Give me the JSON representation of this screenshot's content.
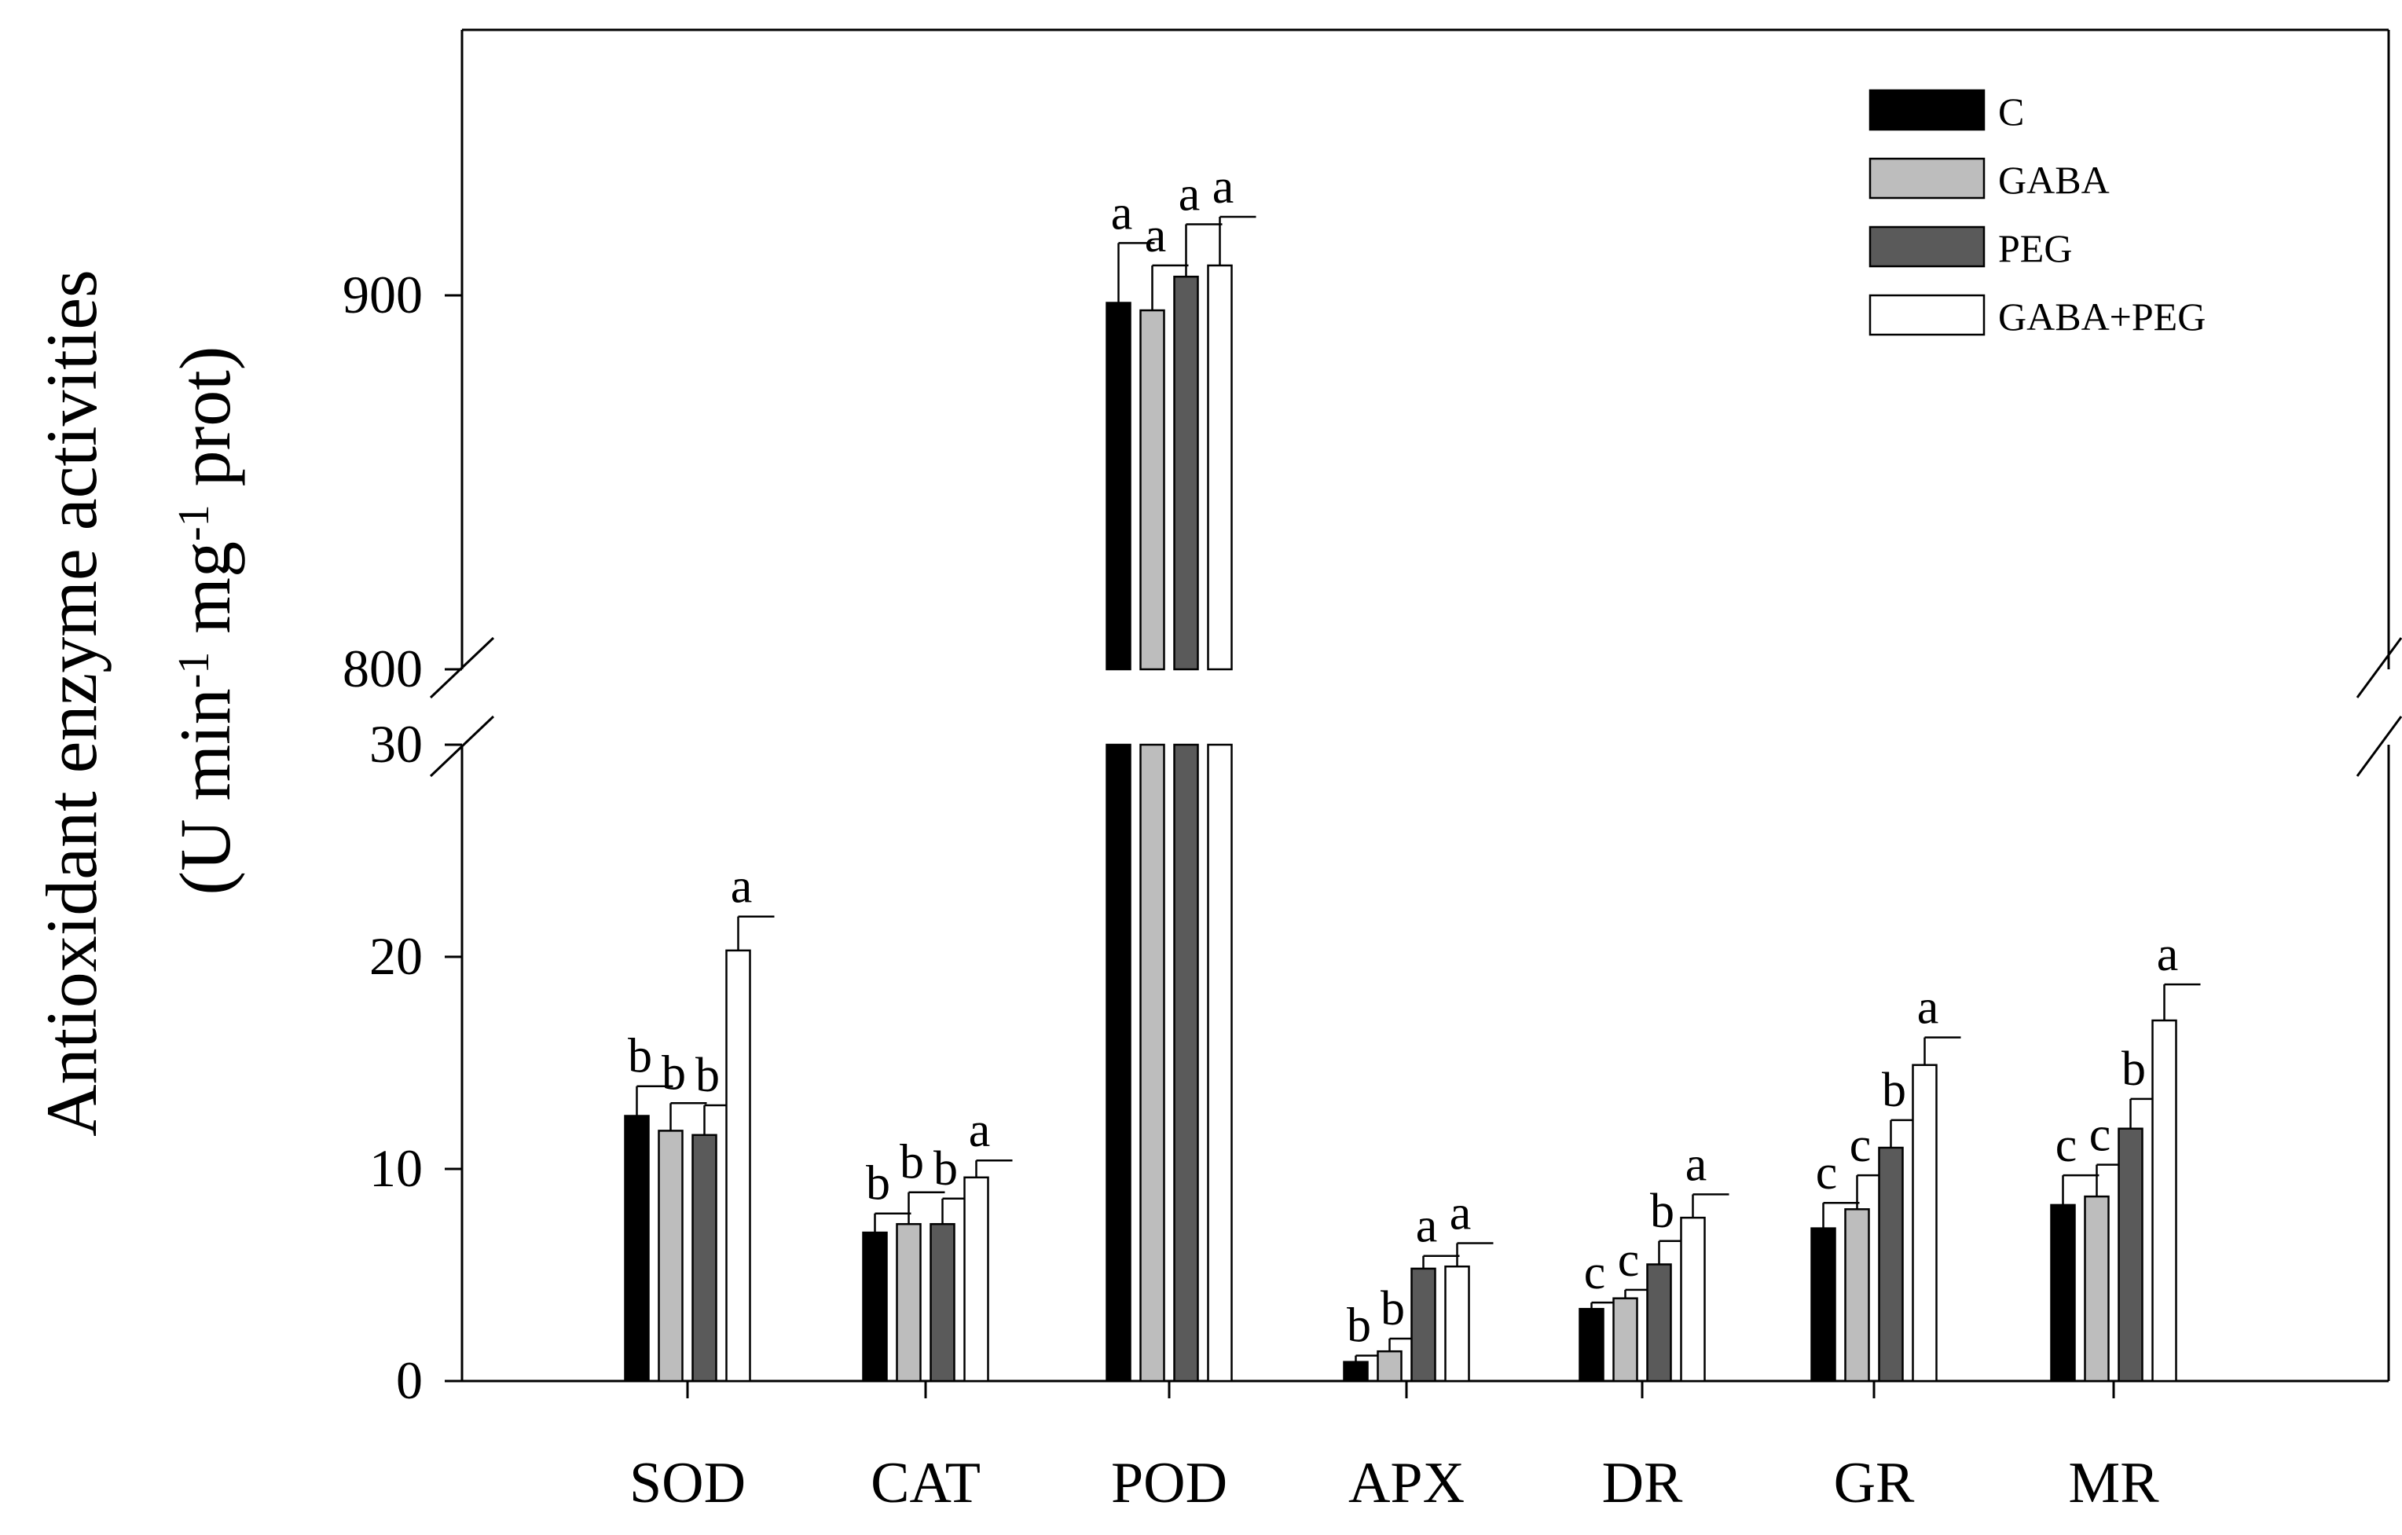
{
  "chart_data": {
    "type": "bar",
    "ylabel": {
      "line1": "Antioxidant enzyme activities",
      "line2_pre": "(U min",
      "sup1": "-1",
      "line2_mid": " mg",
      "sup2": "-1",
      "line2_post": " prot)"
    },
    "xlabel": "",
    "axis_break": {
      "lower_range": [
        0,
        30
      ],
      "upper_range": [
        800,
        980
      ]
    },
    "yticks_lower": [
      0,
      10,
      20,
      30
    ],
    "yticks_upper": [
      800,
      900
    ],
    "categories": [
      "SOD",
      "CAT",
      "POD",
      "APX",
      "DR",
      "GR",
      "MR"
    ],
    "series": [
      {
        "name": "C",
        "color": "#000000",
        "values": [
          12.5,
          7.0,
          898,
          0.9,
          3.4,
          7.2,
          8.3
        ],
        "errors": [
          1.4,
          0.9,
          16,
          0.3,
          0.3,
          1.2,
          1.4
        ],
        "letters": [
          "b",
          "b",
          "a",
          "b",
          "c",
          "c",
          "c"
        ]
      },
      {
        "name": "GABA",
        "color": "#bdbdbd",
        "values": [
          11.8,
          7.4,
          896,
          1.4,
          3.9,
          8.1,
          8.7
        ],
        "errors": [
          1.3,
          1.5,
          12,
          0.6,
          0.4,
          1.6,
          1.5
        ],
        "letters": [
          "b",
          "b",
          "a",
          "b",
          "c",
          "c",
          "c"
        ]
      },
      {
        "name": "PEG",
        "color": "#5a5a5a",
        "values": [
          11.6,
          7.4,
          905,
          5.3,
          5.5,
          11.0,
          11.9
        ],
        "errors": [
          1.4,
          1.2,
          14,
          0.6,
          1.1,
          1.3,
          1.4
        ],
        "letters": [
          "b",
          "b",
          "a",
          "a",
          "b",
          "b",
          "b"
        ]
      },
      {
        "name": "GABA+PEG",
        "color": "#ffffff",
        "values": [
          20.3,
          9.6,
          908,
          5.4,
          7.7,
          14.9,
          17.0
        ],
        "errors": [
          1.6,
          0.8,
          13,
          1.1,
          1.1,
          1.3,
          1.7
        ],
        "letters": [
          "a",
          "a",
          "a",
          "a",
          "a",
          "a",
          "a"
        ]
      }
    ]
  }
}
